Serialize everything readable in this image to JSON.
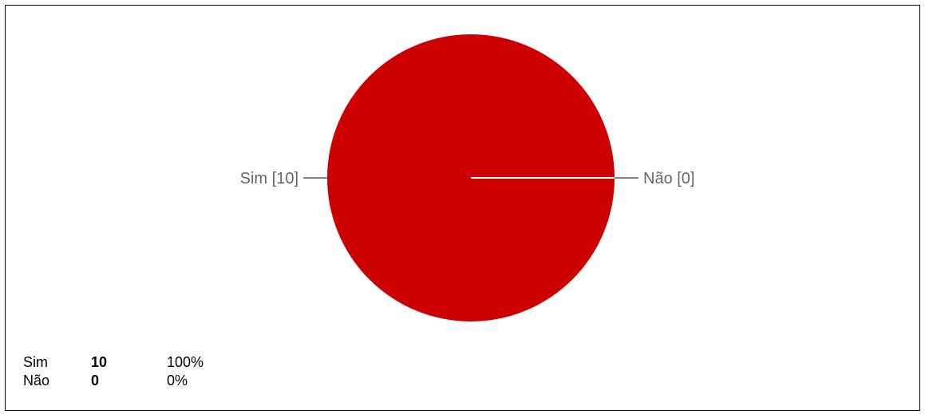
{
  "chart_data": {
    "type": "pie",
    "categories": [
      "Sim",
      "Não"
    ],
    "values": [
      10,
      0
    ],
    "slice_labels": [
      "Sim [10]",
      "Não [0]"
    ],
    "colors": [
      "#cc0000",
      "#3366cc"
    ]
  },
  "summary": {
    "rows": [
      {
        "label": "Sim",
        "count": "10",
        "percent": "100%"
      },
      {
        "label": "Não",
        "count": "0",
        "percent": "0%"
      }
    ]
  }
}
